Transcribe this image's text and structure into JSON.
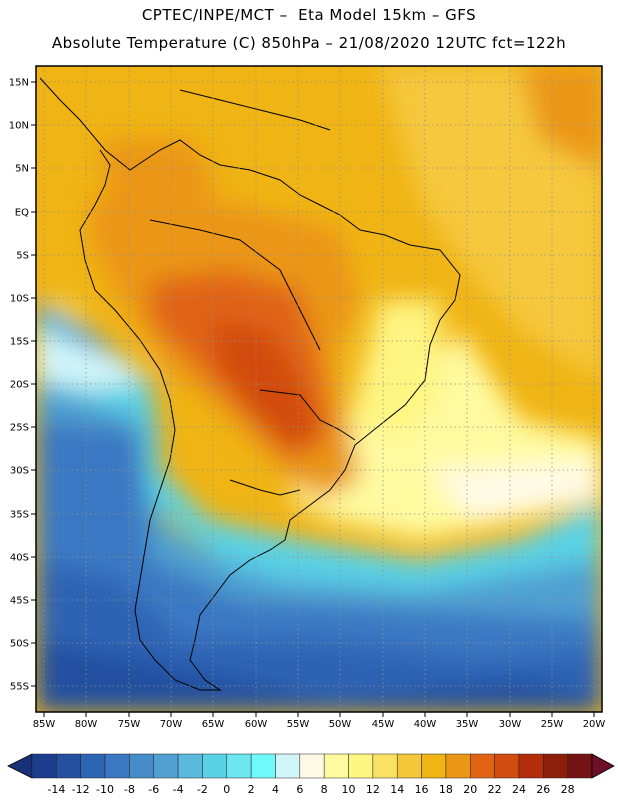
{
  "header": {
    "line1": "CPTEC/INPE/MCT –  Eta Model 15km – GFS",
    "line2": "Absolute Temperature (C) 850hPa – 21/08/2020 12UTC fct=122h"
  },
  "map": {
    "lat_labels": [
      "15N",
      "10N",
      "5N",
      "EQ",
      "5S",
      "10S",
      "15S",
      "20S",
      "25S",
      "30S",
      "35S",
      "40S",
      "45S",
      "50S",
      "55S"
    ],
    "lon_labels": [
      "85W",
      "80W",
      "75W",
      "70W",
      "65W",
      "60W",
      "55W",
      "50W",
      "45W",
      "40W",
      "35W",
      "30W",
      "25W",
      "20W"
    ],
    "lat_range": [
      17.5,
      -57.5
    ],
    "lon_range": [
      -86,
      -19
    ]
  },
  "colorbar": {
    "labels": [
      "-14",
      "-12",
      "-10",
      "-8",
      "-6",
      "-4",
      "-2",
      "0",
      "2",
      "4",
      "6",
      "8",
      "10",
      "12",
      "14",
      "16",
      "18",
      "20",
      "22",
      "24",
      "26",
      "28"
    ],
    "colors": [
      "#1e3c8c",
      "#2450a0",
      "#2d64b4",
      "#3a78c3",
      "#468cc8",
      "#50a0d2",
      "#5ab9dc",
      "#5ad2e6",
      "#6ee6f0",
      "#6efafa",
      "#d2f5fa",
      "#fffae6",
      "#fffaa0",
      "#fff582",
      "#fae164",
      "#f5c83c",
      "#f0b414",
      "#eb9614",
      "#e16414",
      "#d24b0f",
      "#b42d0a",
      "#8c1e0a",
      "#731414"
    ],
    "under_color": "#18327a",
    "over_color": "#6e0f28"
  }
}
